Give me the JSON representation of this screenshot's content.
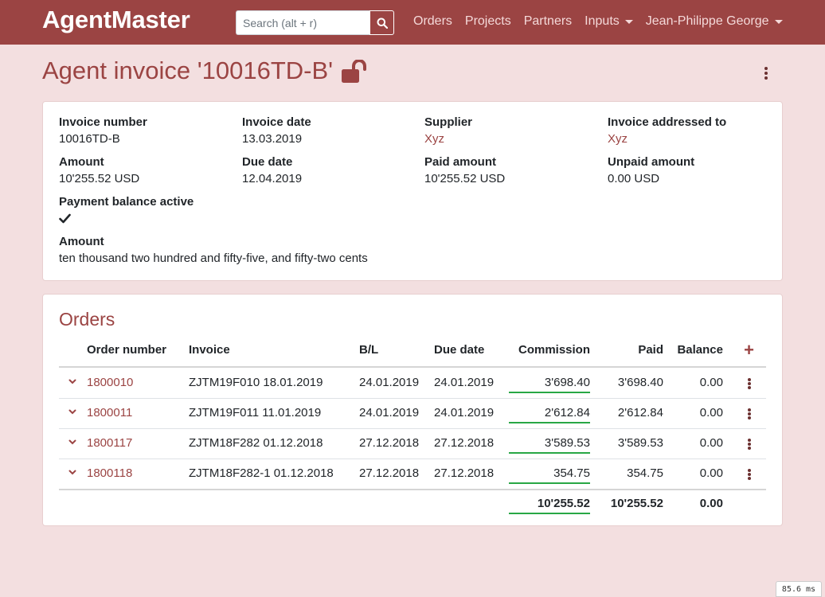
{
  "navbar": {
    "brand": "AgentMaster",
    "search_placeholder": "Search (alt + r)",
    "links": [
      "Orders",
      "Projects",
      "Partners",
      "Inputs",
      "Jean-Philippe George"
    ]
  },
  "page": {
    "title": "Agent invoice '10016TD-B'"
  },
  "invoice": {
    "invoice_number_label": "Invoice number",
    "invoice_number": "10016TD-B",
    "invoice_date_label": "Invoice date",
    "invoice_date": "13.03.2019",
    "supplier_label": "Supplier",
    "supplier": "Xyz",
    "addressed_label": "Invoice addressed to",
    "addressed": "Xyz",
    "amount_label": "Amount",
    "amount": "10'255.52 USD",
    "due_date_label": "Due date",
    "due_date": "12.04.2019",
    "paid_label": "Paid amount",
    "paid": "10'255.52 USD",
    "unpaid_label": "Unpaid amount",
    "unpaid": "0.00 USD",
    "balance_label": "Payment balance active",
    "amount_words_label": "Amount",
    "amount_words": "ten thousand two hundred and fifty-five, and fifty-two cents"
  },
  "orders": {
    "title": "Orders",
    "headers": {
      "order": "Order number",
      "invoice": "Invoice",
      "bl": "B/L",
      "due": "Due date",
      "commission": "Commission",
      "paid": "Paid",
      "balance": "Balance"
    },
    "rows": [
      {
        "order": "1800010",
        "invoice": "ZJTM19F010 18.01.2019",
        "bl": "24.01.2019",
        "due": "24.01.2019",
        "commission": "3'698.40",
        "paid": "3'698.40",
        "balance": "0.00"
      },
      {
        "order": "1800011",
        "invoice": "ZJTM19F011 11.01.2019",
        "bl": "24.01.2019",
        "due": "24.01.2019",
        "commission": "2'612.84",
        "paid": "2'612.84",
        "balance": "0.00"
      },
      {
        "order": "1800117",
        "invoice": "ZJTM18F282 01.12.2018",
        "bl": "27.12.2018",
        "due": "27.12.2018",
        "commission": "3'589.53",
        "paid": "3'589.53",
        "balance": "0.00"
      },
      {
        "order": "1800118",
        "invoice": "ZJTM18F282-1 01.12.2018",
        "bl": "27.12.2018",
        "due": "27.12.2018",
        "commission": "354.75",
        "paid": "354.75",
        "balance": "0.00"
      }
    ],
    "totals": {
      "commission": "10'255.52",
      "paid": "10'255.52",
      "balance": "0.00"
    }
  },
  "timer": "85.6 ms",
  "colors": {
    "brand": "#9b4443",
    "background": "#f3dfe0",
    "underline": "#28a745"
  }
}
